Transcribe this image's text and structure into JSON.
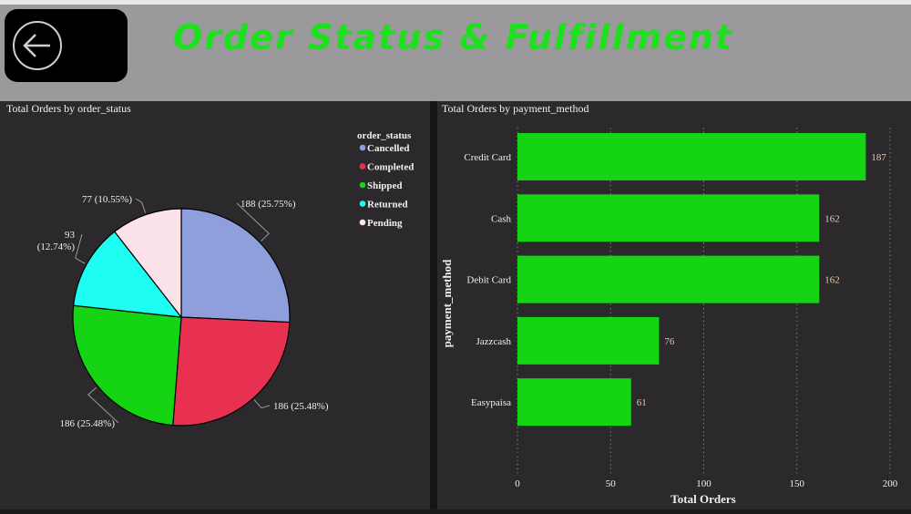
{
  "header": {
    "title": "Order Status & Fulfillment",
    "background": "#9b999b",
    "title_color": "#1ee01e",
    "back_icon": "back-arrow-icon"
  },
  "chart_data": [
    {
      "type": "pie",
      "title": "Total Orders by order_status",
      "legend_title": "order_status",
      "legend_position": "top-right",
      "slices": [
        {
          "name": "Cancelled",
          "value": 188,
          "label": "188 (25.75%)",
          "color": "#8f9fdc"
        },
        {
          "name": "Completed",
          "value": 186,
          "label": "186 (25.48%)",
          "color": "#e83151"
        },
        {
          "name": "Shipped",
          "value": 186,
          "label": "186 (25.48%)",
          "color": "#14d414"
        },
        {
          "name": "Returned",
          "value": 93,
          "label": "93 (12.74%)",
          "label_lines": [
            "93",
            "(12.74%)"
          ],
          "color": "#1dfdf1"
        },
        {
          "name": "Pending",
          "value": 77,
          "label": "77 (10.55%)",
          "color": "#fbe3e9"
        }
      ]
    },
    {
      "type": "bar",
      "orientation": "horizontal",
      "title": "Total Orders by payment_method",
      "xlabel": "Total Orders",
      "ylabel": "payment_method",
      "categories": [
        "Credit Card",
        "Cash",
        "Debit Card",
        "Jazzcash",
        "Easypaisa"
      ],
      "values": [
        187,
        162,
        162,
        76,
        61
      ],
      "xticks": [
        0,
        50,
        100,
        150,
        200
      ],
      "xlim": [
        0,
        200
      ],
      "bar_color": "#14d414",
      "grid": true
    }
  ]
}
